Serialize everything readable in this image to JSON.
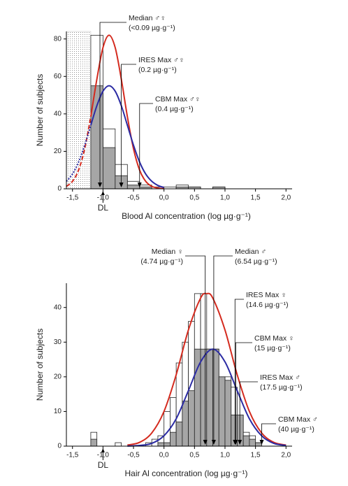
{
  "chart_data": [
    {
      "type": "histogram",
      "x_label": "Blood Al concentration (log µg·g⁻¹)",
      "y_label": "Number of subjects",
      "xlim": [
        -1.6,
        2.1
      ],
      "ylim": [
        0,
        84
      ],
      "xticks": [
        {
          "value": -1.5,
          "label": "-1,5"
        },
        {
          "value": -1.0,
          "label": "-1,0"
        },
        {
          "value": -0.5,
          "label": "-0,5"
        },
        {
          "value": 0,
          "label": "0,0"
        },
        {
          "value": 0.5,
          "label": "0,5"
        },
        {
          "value": 1.0,
          "label": "1,0"
        },
        {
          "value": 1.5,
          "label": "1,5"
        },
        {
          "value": 2.0,
          "label": "2,0"
        }
      ],
      "yticks": [
        0,
        20,
        40,
        60,
        80
      ],
      "shaded": true,
      "detection_limit": {
        "label": "DL",
        "value": -1.0
      },
      "bins": [
        -1.2,
        -1.0,
        -0.8,
        -0.6,
        -0.4,
        -0.2,
        0,
        0.2,
        0.4,
        0.6,
        0.8,
        1.0
      ],
      "series": [
        {
          "color": "#ffffff",
          "values": [
            82,
            32,
            13,
            4,
            2,
            1,
            1,
            2,
            1,
            0,
            1
          ]
        },
        {
          "color": "#a6a6a6",
          "values": [
            55,
            22,
            7,
            2,
            1,
            0,
            0,
            1,
            1,
            0,
            1
          ]
        }
      ],
      "curves": [
        {
          "color": "#d42a1e",
          "dash": "6,3",
          "x": [
            -1.6,
            -1.5,
            -1.4,
            -1.3,
            -1.2,
            -1.1,
            -1.0,
            -0.9,
            -0.8,
            -0.7,
            -0.6,
            -0.5,
            -0.4,
            -0.3,
            -0.2,
            -0.1,
            0.0
          ],
          "values": [
            1.3,
            4.0,
            10.0,
            21.4,
            38.5,
            58.6,
            75.4,
            82,
            75.4,
            58.6,
            38.5,
            21.4,
            10.0,
            4.0,
            1.3,
            0.4,
            0.1
          ]
        },
        {
          "color": "#2b2ba3",
          "dash": "2,2",
          "x": [
            -1.6,
            -1.5,
            -1.4,
            -1.3,
            -1.2,
            -1.1,
            -1.0,
            -0.9,
            -0.8,
            -0.7,
            -0.6,
            -0.5,
            -0.4,
            -0.3,
            -0.2,
            -0.1,
            0.0
          ],
          "values": [
            4.0,
            7.9,
            14.3,
            23.3,
            33.9,
            44.4,
            52.1,
            55,
            52.1,
            44.4,
            33.9,
            23.3,
            14.3,
            7.9,
            4.0,
            1.8,
            0.7
          ]
        }
      ],
      "annotations": [
        {
          "label": "Median ♂♀",
          "sublabel": "(<0.09 µg·g⁻¹)",
          "x": -1.05
        },
        {
          "label": "IRES Max ♂♀",
          "sublabel": "(0.2 µg·g⁻¹)",
          "x": -0.7
        },
        {
          "label": "CBM Max ♂♀",
          "sublabel": "(0.4 µg·g⁻¹)",
          "x": -0.4
        }
      ]
    },
    {
      "type": "histogram",
      "x_label": "Hair Al concentration (log µg·g⁻¹)",
      "y_label": "Number of subjects",
      "xlim": [
        -1.6,
        2.1
      ],
      "ylim": [
        0,
        47
      ],
      "xticks": [
        {
          "value": -1.5,
          "label": "-1,5"
        },
        {
          "value": -1.0,
          "label": "-1,0"
        },
        {
          "value": -0.5,
          "label": "-0,5"
        },
        {
          "value": 0,
          "label": "0,0"
        },
        {
          "value": 0.5,
          "label": "0,5"
        },
        {
          "value": 1.0,
          "label": "1,0"
        },
        {
          "value": 1.5,
          "label": "1,5"
        },
        {
          "value": 2.0,
          "label": "2,0"
        }
      ],
      "yticks": [
        0,
        10,
        20,
        30,
        40
      ],
      "shaded": false,
      "detection_limit": {
        "label": "DL",
        "value": -1.0
      },
      "bins": [
        -1.2,
        -1.1,
        -1.0,
        -0.9,
        -0.8,
        -0.7,
        -0.6,
        -0.5,
        -0.4,
        -0.3,
        -0.2,
        -0.1,
        0.0,
        0.1,
        0.2,
        0.3,
        0.4,
        0.5,
        0.6,
        0.7,
        0.8,
        0.9,
        1.0,
        1.1,
        1.2,
        1.3,
        1.4,
        1.5,
        1.6,
        1.7
      ],
      "series": [
        {
          "color": "#ffffff",
          "values": [
            4,
            0,
            0,
            0,
            1,
            0,
            0,
            0,
            0,
            1,
            2,
            3,
            10,
            14,
            24,
            30,
            36,
            44,
            44,
            28,
            28,
            20,
            20,
            17,
            9,
            4,
            3,
            1,
            0
          ]
        },
        {
          "color": "#a6a6a6",
          "values": [
            2,
            0,
            0,
            0,
            0,
            0,
            0,
            0,
            0,
            0,
            0,
            1,
            1,
            4,
            7,
            13,
            16,
            28,
            28,
            28,
            28,
            20,
            19,
            9,
            9,
            3,
            2,
            1,
            0
          ]
        }
      ],
      "curves": [
        {
          "color": "#d42a1e",
          "dash": "6,3",
          "x": [
            -0.6,
            -0.4,
            -0.2,
            0.0,
            0.2,
            0.4,
            0.6,
            0.7,
            0.8,
            1.0,
            1.2,
            1.4,
            1.6,
            1.8,
            2.0
          ],
          "values": [
            0.3,
            1.1,
            3.8,
            10.0,
            20.6,
            33.5,
            42.7,
            44,
            42.7,
            33.5,
            20.6,
            10.0,
            3.8,
            1.1,
            0.3
          ]
        },
        {
          "color": "#2b2ba3",
          "dash": "2,2",
          "x": [
            -0.6,
            -0.4,
            -0.2,
            0.0,
            0.2,
            0.4,
            0.6,
            0.8,
            1.0,
            1.2,
            1.4,
            1.6,
            1.8,
            2.0
          ],
          "values": [
            0.03,
            0.2,
            0.8,
            3.0,
            7.9,
            16.0,
            24.3,
            28,
            24.3,
            16.0,
            7.9,
            3.0,
            0.8,
            0.2
          ]
        }
      ],
      "annotations": [
        {
          "label": "Median ♀",
          "sublabel": "(4.74 µg·g⁻¹)",
          "x": 0.676
        },
        {
          "label": "Median ♂",
          "sublabel": "(6.54 µg·g⁻¹)",
          "x": 0.816
        },
        {
          "label": "IRES Max ♀",
          "sublabel": "(14.6 µg·g⁻¹)",
          "x": 1.164
        },
        {
          "label": "CBM Max ♀",
          "sublabel": "(15 µg·g⁻¹)",
          "x": 1.176
        },
        {
          "label": "IRES Max ♂",
          "sublabel": "(17.5 µg·g⁻¹)",
          "x": 1.243
        },
        {
          "label": "CBM Max ♂",
          "sublabel": "(40 µg·g⁻¹)",
          "x": 1.602
        }
      ]
    }
  ]
}
